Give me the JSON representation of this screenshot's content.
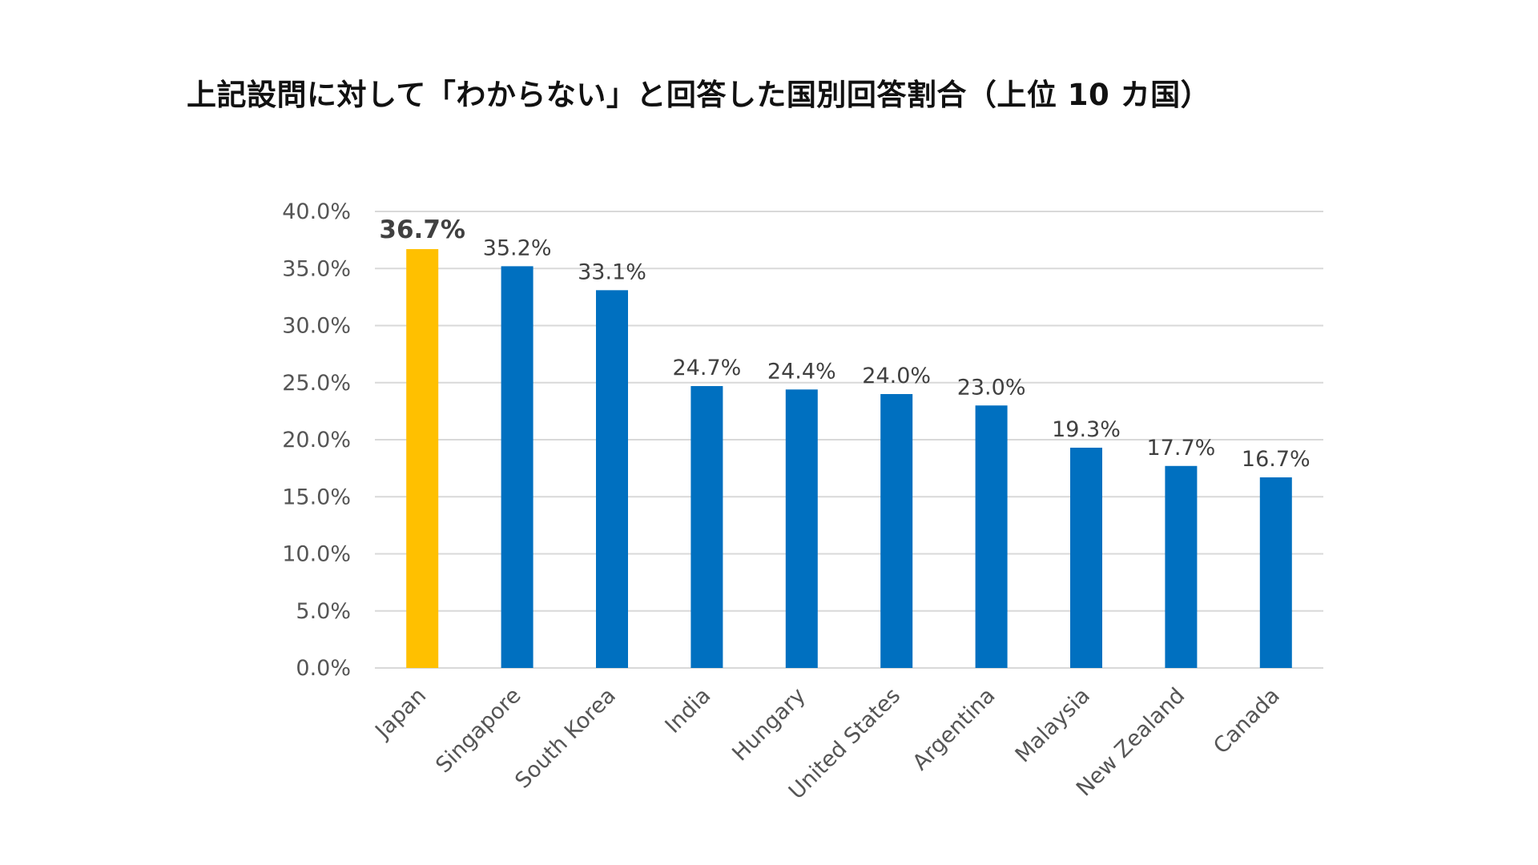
{
  "title": "上記設問に対して「わからない」と回答した国別回答割合（上位 10 カ国）",
  "colors": {
    "highlight_bar": "#FFC000",
    "bar": "#0070C0",
    "highlight_label": "#FF0000",
    "label": "#404040",
    "grid": "#D9D9D9",
    "axis_text": "#595959"
  },
  "chart_data": {
    "type": "bar",
    "title": "上記設問に対して「わからない」と回答した国別回答割合（上位 10 カ国）",
    "categories": [
      "Japan",
      "Singapore",
      "South Korea",
      "India",
      "Hungary",
      "United States",
      "Argentina",
      "Malaysia",
      "New Zealand",
      "Canada"
    ],
    "values": [
      36.7,
      35.2,
      33.1,
      24.7,
      24.4,
      24.0,
      23.0,
      19.3,
      17.7,
      16.7
    ],
    "value_labels": [
      "36.7%",
      "35.2%",
      "33.1%",
      "24.7%",
      "24.4%",
      "24.0%",
      "23.0%",
      "19.3%",
      "17.7%",
      "16.7%"
    ],
    "highlight_category": "Japan",
    "ylim": [
      0,
      40
    ],
    "yticks": [
      0,
      5,
      10,
      15,
      20,
      25,
      30,
      35,
      40
    ],
    "ytick_labels": [
      "0.0%",
      "5.0%",
      "10.0%",
      "15.0%",
      "20.0%",
      "25.0%",
      "30.0%",
      "35.0%",
      "40.0%"
    ],
    "xlabel": "",
    "ylabel": "",
    "grid": true,
    "legend": "none"
  }
}
